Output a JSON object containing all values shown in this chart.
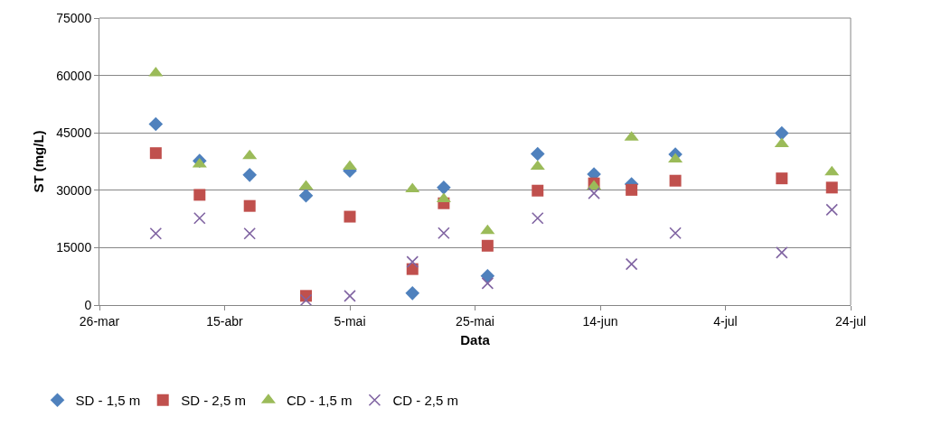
{
  "chart_data": {
    "type": "scatter",
    "xlabel": "Data",
    "ylabel": "ST (mg/L)",
    "x": [
      "--04-04",
      "--04-11",
      "--04-19",
      "--04-28",
      "--05-05",
      "--05-15",
      "--05-20",
      "--05-27",
      "--06-04",
      "--06-13",
      "--06-19",
      "--06-26",
      "--07-13",
      "--07-21"
    ],
    "series": [
      {
        "name": "SD - 1,5 m",
        "color": "#4f81bd",
        "marker": "diamond",
        "values": [
          47300,
          37700,
          34000,
          28600,
          35100,
          3100,
          30700,
          7600,
          39500,
          34200,
          31600,
          39400,
          44900,
          null
        ]
      },
      {
        "name": "SD - 2,5 m",
        "color": "#c0504d",
        "marker": "square",
        "values": [
          39700,
          28800,
          25900,
          2400,
          23100,
          9400,
          26600,
          15500,
          29900,
          31800,
          30100,
          32500,
          33100,
          30700
        ]
      },
      {
        "name": "CD - 1,5 m",
        "color": "#9bbb59",
        "marker": "triangle",
        "values": [
          60600,
          36800,
          39000,
          31000,
          36200,
          30300,
          27700,
          19400,
          36200,
          31000,
          43800,
          38100,
          42100,
          34700
        ]
      },
      {
        "name": "CD - 2,5 m",
        "color": "#8064a2",
        "marker": "cross",
        "values": [
          18700,
          22700,
          18700,
          1300,
          2400,
          11300,
          18800,
          5700,
          22700,
          29200,
          10700,
          18800,
          13700,
          24900
        ]
      }
    ],
    "xlim": [
      "--03-26",
      "--07-24"
    ],
    "xticks": [
      {
        "value": "--03-26",
        "label": "26-mar"
      },
      {
        "value": "--04-15",
        "label": "15-abr"
      },
      {
        "value": "--05-05",
        "label": "5-mai"
      },
      {
        "value": "--05-25",
        "label": "25-mai"
      },
      {
        "value": "--06-14",
        "label": "14-jun"
      },
      {
        "value": "--07-04",
        "label": "4-jul"
      },
      {
        "value": "--07-24",
        "label": "24-jul"
      }
    ],
    "ylim": [
      0,
      75000
    ],
    "yticks": [
      0,
      15000,
      30000,
      45000,
      60000,
      75000
    ],
    "grid": "y",
    "legend": "bottom left"
  }
}
